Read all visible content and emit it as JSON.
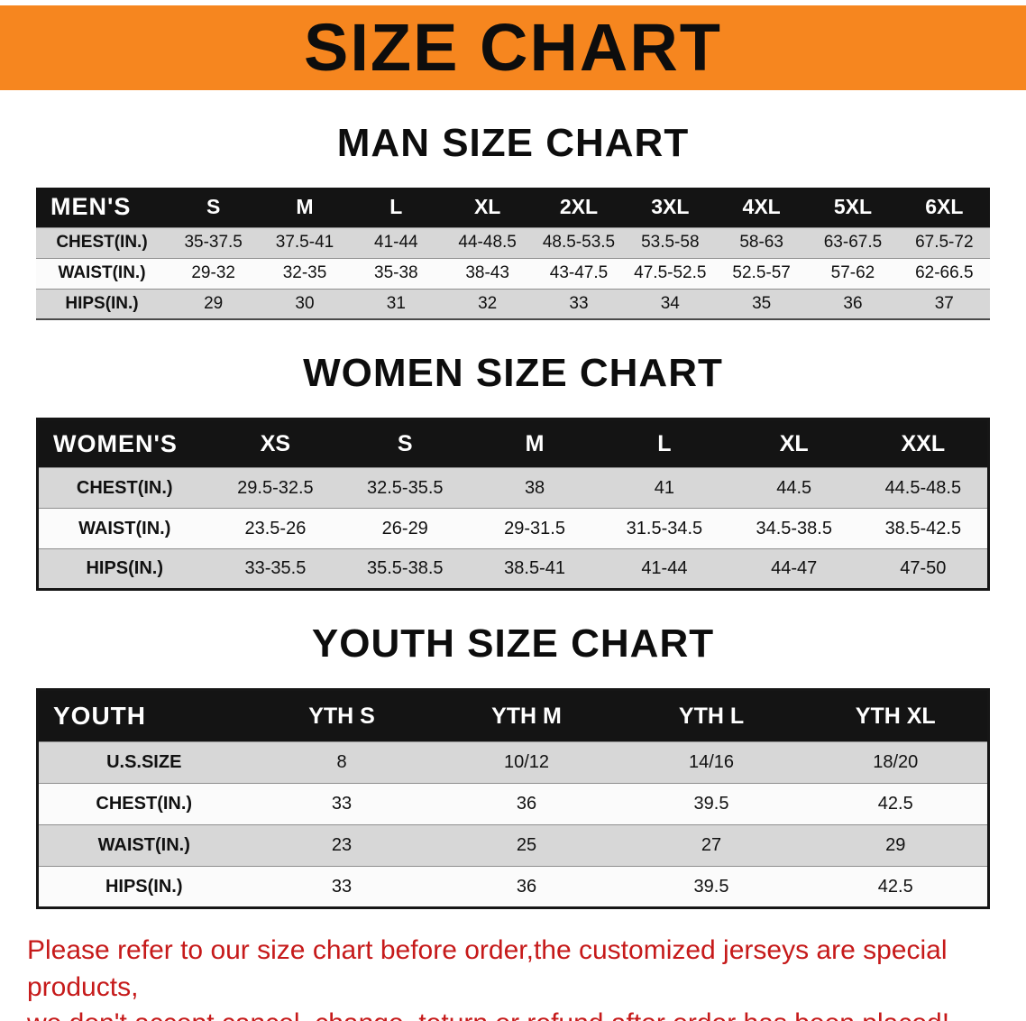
{
  "banner": {
    "title": "SIZE CHART",
    "bg_color": "#f6861f"
  },
  "sections": [
    {
      "heading": "MAN SIZE CHART",
      "table": {
        "header": [
          "MEN'S",
          "S",
          "M",
          "L",
          "XL",
          "2XL",
          "3XL",
          "4XL",
          "5XL",
          "6XL"
        ],
        "rows": [
          {
            "label": "CHEST(IN.)",
            "values": [
              "35-37.5",
              "37.5-41",
              "41-44",
              "44-48.5",
              "48.5-53.5",
              "53.5-58",
              "58-63",
              "63-67.5",
              "67.5-72"
            ]
          },
          {
            "label": "WAIST(IN.)",
            "values": [
              "29-32",
              "32-35",
              "35-38",
              "38-43",
              "43-47.5",
              "47.5-52.5",
              "52.5-57",
              "57-62",
              "62-66.5"
            ]
          },
          {
            "label": "HIPS(IN.)",
            "values": [
              "29",
              "30",
              "31",
              "32",
              "33",
              "34",
              "35",
              "36",
              "37"
            ]
          }
        ]
      }
    },
    {
      "heading": "WOMEN SIZE CHART",
      "table": {
        "header": [
          "WOMEN'S",
          "XS",
          "S",
          "M",
          "L",
          "XL",
          "XXL"
        ],
        "rows": [
          {
            "label": "CHEST(IN.)",
            "values": [
              "29.5-32.5",
              "32.5-35.5",
              "38",
              "41",
              "44.5",
              "44.5-48.5"
            ]
          },
          {
            "label": "WAIST(IN.)",
            "values": [
              "23.5-26",
              "26-29",
              "29-31.5",
              "31.5-34.5",
              "34.5-38.5",
              "38.5-42.5"
            ]
          },
          {
            "label": "HIPS(IN.)",
            "values": [
              "33-35.5",
              "35.5-38.5",
              "38.5-41",
              "41-44",
              "44-47",
              "47-50"
            ]
          }
        ]
      }
    },
    {
      "heading": "YOUTH SIZE CHART",
      "table": {
        "header": [
          "YOUTH",
          "YTH S",
          "YTH M",
          "YTH L",
          "YTH XL"
        ],
        "rows": [
          {
            "label": "U.S.SIZE",
            "values": [
              "8",
              "10/12",
              "14/16",
              "18/20"
            ]
          },
          {
            "label": "CHEST(IN.)",
            "values": [
              "33",
              "36",
              "39.5",
              "42.5"
            ]
          },
          {
            "label": "WAIST(IN.)",
            "values": [
              "23",
              "25",
              "27",
              "29"
            ]
          },
          {
            "label": "HIPS(IN.)",
            "values": [
              "33",
              "36",
              "39.5",
              "42.5"
            ]
          }
        ]
      }
    }
  ],
  "disclaimer": {
    "line1": "Please refer to our size chart before order,the customized jerseys are special products,",
    "line2": "we don't accept cancel, change, teturn or refund after order has been placed!",
    "text_color": "#c61a1a"
  }
}
